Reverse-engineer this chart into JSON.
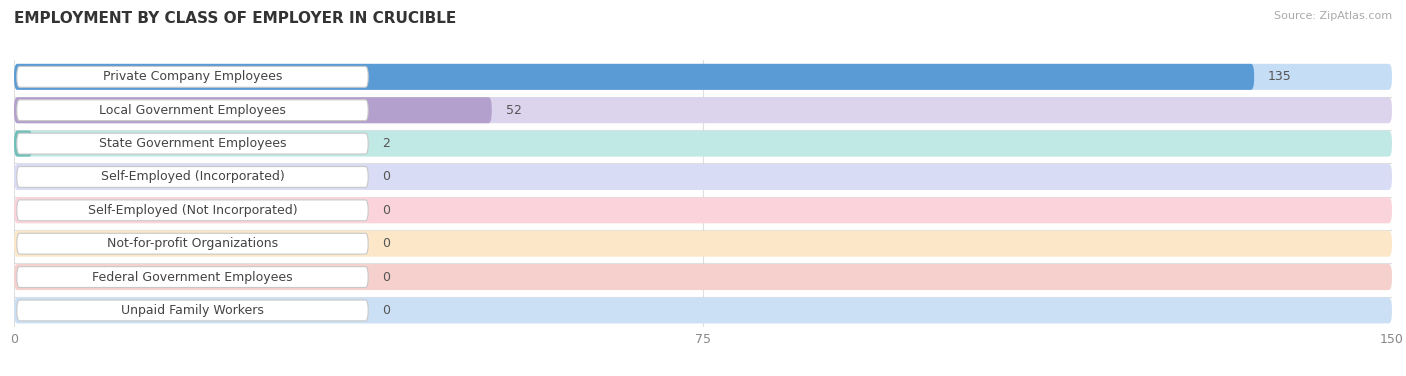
{
  "title": "EMPLOYMENT BY CLASS OF EMPLOYER IN CRUCIBLE",
  "source": "Source: ZipAtlas.com",
  "categories": [
    "Private Company Employees",
    "Local Government Employees",
    "State Government Employees",
    "Self-Employed (Incorporated)",
    "Self-Employed (Not Incorporated)",
    "Not-for-profit Organizations",
    "Federal Government Employees",
    "Unpaid Family Workers"
  ],
  "values": [
    135,
    52,
    2,
    0,
    0,
    0,
    0,
    0
  ],
  "bar_colors": [
    "#5b9bd5",
    "#b4a0cc",
    "#6dbfb8",
    "#a0aee0",
    "#f0a0b0",
    "#f5c897",
    "#e89090",
    "#90b8e0"
  ],
  "bar_light_colors": [
    "#c5ddf5",
    "#dcd4ed",
    "#c0e8e4",
    "#d8dcf5",
    "#fad4da",
    "#fce8c8",
    "#f5d0cc",
    "#cce0f5"
  ],
  "xlim": [
    0,
    150
  ],
  "xticks": [
    0,
    75,
    150
  ],
  "title_fontsize": 11,
  "label_fontsize": 9,
  "value_fontsize": 9,
  "background_color": "#ffffff",
  "grid_color": "#d0d0d0",
  "row_sep_color": "#e0e0e0"
}
